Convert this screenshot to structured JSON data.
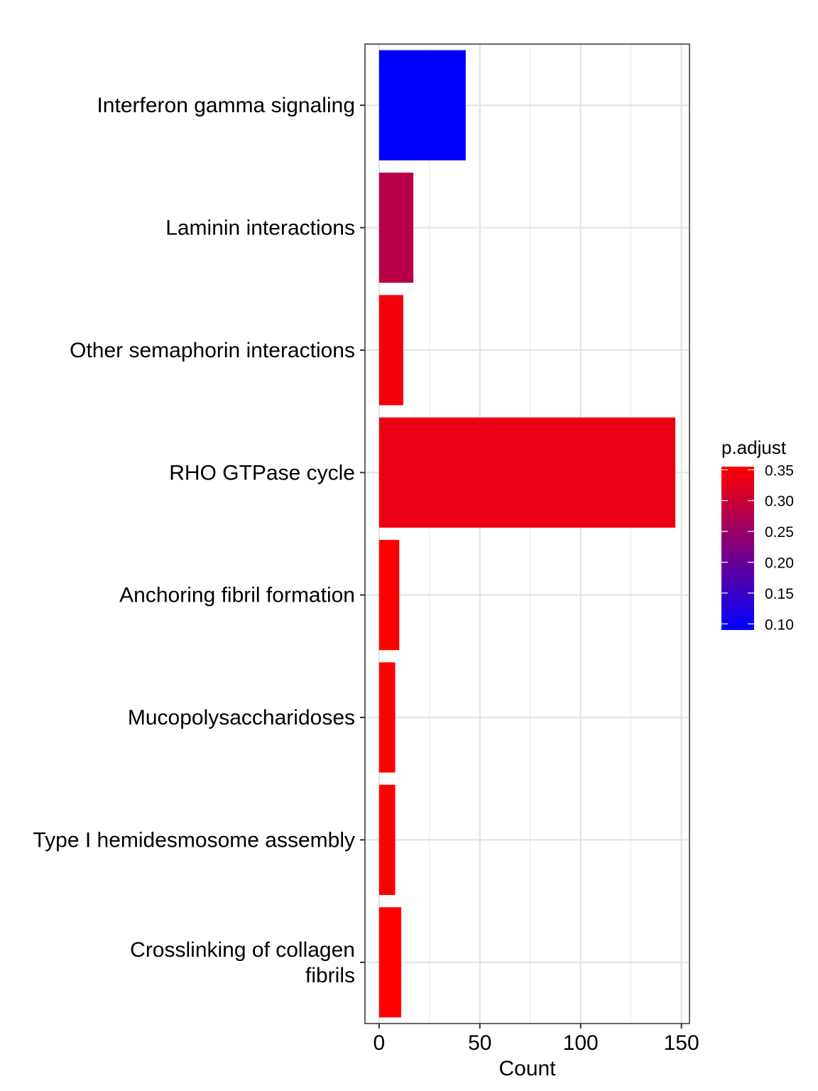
{
  "chart_data": {
    "type": "bar",
    "orientation": "horizontal",
    "xlabel": "Count",
    "ylabel": "",
    "xlim": [
      -7,
      154
    ],
    "x_ticks": [
      0,
      50,
      100,
      150
    ],
    "x_tick_labels": [
      "0",
      "50",
      "100",
      "150"
    ],
    "grid": true,
    "categories": [
      "Interferon gamma signaling",
      "Laminin interactions",
      "Other semaphorin interactions",
      "RHO GTPase cycle",
      "Anchoring fibril formation",
      "Mucopolysaccharidoses",
      "Type I hemidesmosome assembly",
      "Crosslinking of collagen fibrils"
    ],
    "category_label_lines": [
      [
        "Interferon gamma signaling"
      ],
      [
        "Laminin interactions"
      ],
      [
        "Other semaphorin interactions"
      ],
      [
        "RHO GTPase cycle"
      ],
      [
        "Anchoring fibril formation"
      ],
      [
        "Mucopolysaccharidoses"
      ],
      [
        "Type I hemidesmosome assembly"
      ],
      [
        "Crosslinking of collagen",
        "fibrils"
      ]
    ],
    "values": [
      43,
      17,
      12,
      147,
      10,
      8,
      8,
      11
    ],
    "p_adjust": [
      0.09,
      0.28,
      0.345,
      0.335,
      0.355,
      0.355,
      0.355,
      0.355
    ],
    "legend": {
      "title": "p.adjust",
      "placement": "right",
      "range": [
        0.09,
        0.355
      ],
      "ticks": [
        0.35,
        0.3,
        0.25,
        0.2,
        0.15,
        0.1
      ],
      "tick_labels": [
        "0.35",
        "0.30",
        "0.25",
        "0.20",
        "0.15",
        "0.10"
      ],
      "low_color": "#0000ff",
      "high_color": "#ff0000"
    }
  }
}
